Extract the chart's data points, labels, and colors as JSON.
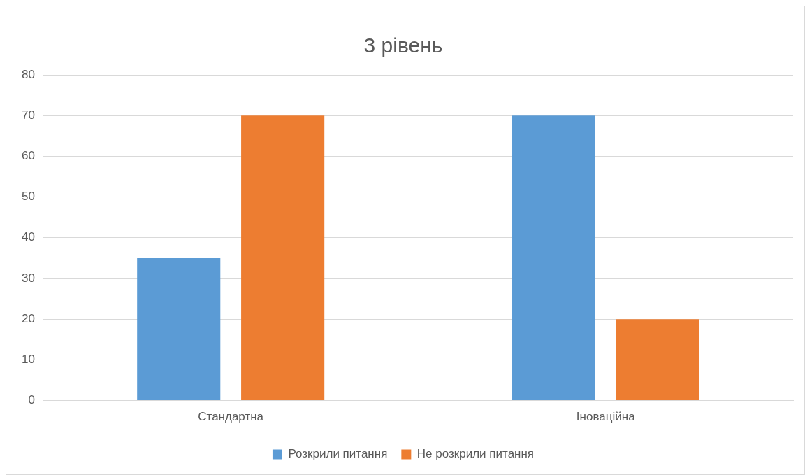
{
  "chart_data": {
    "type": "bar",
    "title": "3 рівень",
    "categories": [
      "Стандартна",
      "Іноваційна"
    ],
    "series": [
      {
        "name": "Розкрили питання",
        "color": "#5b9bd5",
        "values": [
          35,
          70
        ]
      },
      {
        "name": "Не розкрили питання",
        "color": "#ed7d31",
        "values": [
          70,
          20
        ]
      }
    ],
    "ylim": [
      0,
      80
    ],
    "yticks": [
      0,
      10,
      20,
      30,
      40,
      50,
      60,
      70,
      80
    ],
    "grid": "y",
    "legend": "bottom"
  }
}
